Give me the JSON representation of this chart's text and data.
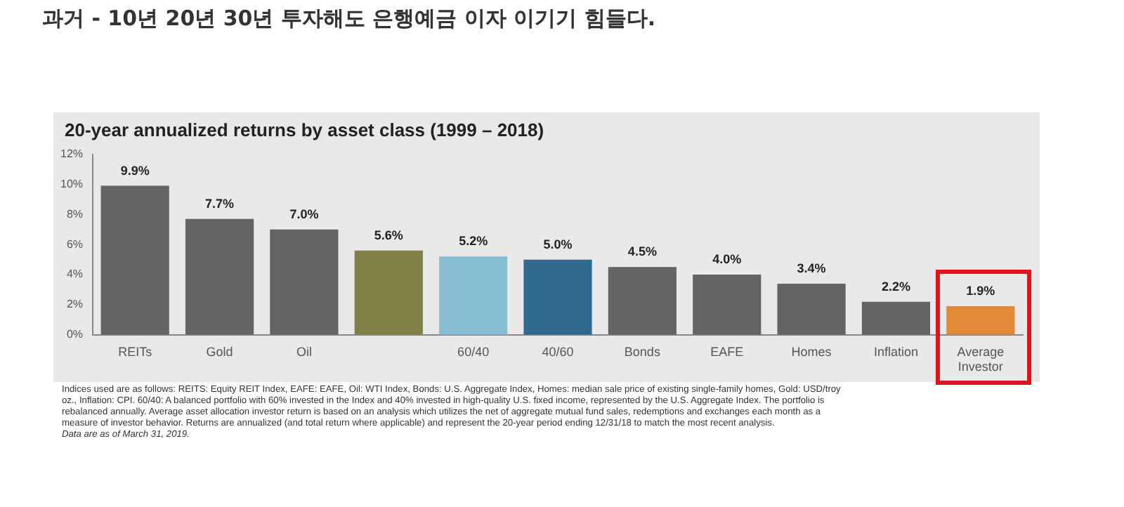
{
  "chart_data": {
    "type": "bar",
    "title": "과거 - 10년 20년 30년 투자해도 은행예금 이자 이기기 힘들다.",
    "subtitle": "20-year annualized returns by asset class (1999 – 2018)",
    "categories": [
      "REITs",
      "Gold",
      "Oil",
      null,
      "60/40",
      "40/60",
      "Bonds",
      "EAFE",
      "Homes",
      "Inflation",
      "Average Investor"
    ],
    "values": [
      9.9,
      7.7,
      7.0,
      5.6,
      5.2,
      5.0,
      4.5,
      4.0,
      3.4,
      2.2,
      1.9
    ],
    "value_labels": [
      "9.9%",
      "7.7%",
      "7.0%",
      "5.6%",
      "5.2%",
      "5.0%",
      "4.5%",
      "4.0%",
      "3.4%",
      "2.2%",
      "1.9%"
    ],
    "colors": [
      "#646464",
      "#646464",
      "#646464",
      "#808046",
      "#86bcd4",
      "#2f6a8e",
      "#646464",
      "#646464",
      "#646464",
      "#646464",
      "#e38a38"
    ],
    "ylim": [
      0,
      12
    ],
    "yticks": [
      {
        "value": 0,
        "label": "0%"
      },
      {
        "value": 2,
        "label": "2%"
      },
      {
        "value": 4,
        "label": "4%"
      },
      {
        "value": 6,
        "label": "6%"
      },
      {
        "value": 8,
        "label": "8%"
      },
      {
        "value": 10,
        "label": "10%"
      },
      {
        "value": 12,
        "label": "12%"
      }
    ],
    "grid": false,
    "legend": false,
    "annotations": [
      "Indices used are as follows: REITS: Equity REIT Index, EAFE: EAFE, Oil: WTI Index, Bonds: U.S. Aggregate Index, Homes: median sale price of existing single-family homes, Gold: USD/troy oz., Inflation: CPI. 60/40: A balanced portfolio with 60% invested in the Index and 40% invested in high-quality U.S. fixed income, represented by the U.S. Aggregate Index. The portfolio is rebalanced annually. Average asset allocation investor return is based on an analysis which utilizes the net of aggregate mutual fund sales, redemptions and exchanges each month as a measure of investor behavior. Returns are annualized (and total return where applicable) and represent the 20-year period ending 12/31/18 to match the most recent analysis.",
      "Data are as of March 31, 2019."
    ]
  }
}
